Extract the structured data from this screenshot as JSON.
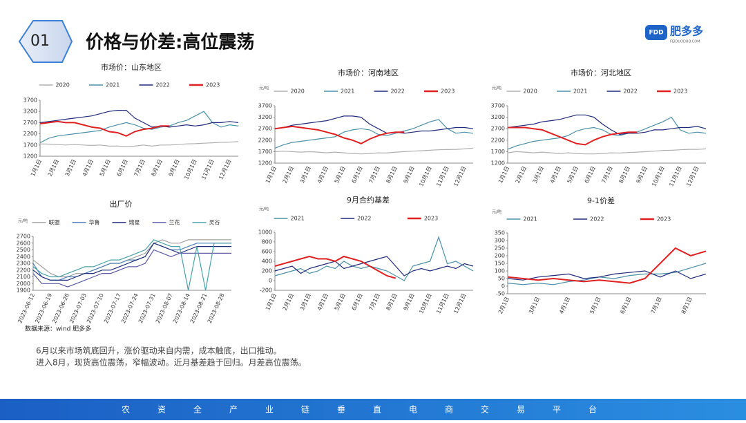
{
  "header": {
    "number": "01",
    "title": "价格与价差:高位震荡"
  },
  "logo": {
    "badge": "FDD",
    "name": "肥多多",
    "url": "FEIDUODUO.COM"
  },
  "source": "数据来源：wind  肥多多",
  "notes": [
    "6月以来市场筑底回升，涨价驱动来自内需，成本触底，出口推动。",
    "进入8月，现货高位震荡，窄幅波动。近月基差趋于回归。月差高位震荡。"
  ],
  "footer": "农资全产业链垂直电商交易平台",
  "chart_data": [
    {
      "type": "line",
      "title": "市场价：山东地区",
      "categories": [
        "1月1日",
        null,
        "2月1日",
        null,
        "3月1日",
        null,
        "4月1日",
        null,
        "5月1日",
        null,
        "6月1日",
        null,
        "7月1日",
        null,
        "8月1日",
        null,
        "9月1日",
        null,
        "10月1日",
        null,
        "11月1日",
        null,
        "12月1日",
        null
      ],
      "ylim": [
        1200,
        3700
      ],
      "yticks": [
        1200,
        1700,
        2200,
        2700,
        3200,
        3700
      ],
      "series": [
        {
          "name": "2020",
          "color": "#b0b0b0",
          "values": [
            1750,
            1740,
            1720,
            1700,
            1720,
            1700,
            1680,
            1700,
            1650,
            1650,
            1620,
            1650,
            1700,
            1650,
            1700,
            1700,
            1720,
            1750,
            1760,
            1780,
            1800,
            1820,
            1830,
            1850
          ]
        },
        {
          "name": "2021",
          "color": "#4a8fa8",
          "values": [
            1800,
            2000,
            2100,
            2150,
            2200,
            2250,
            2300,
            2350,
            2500,
            2600,
            2700,
            2600,
            2450,
            2400,
            2500,
            2550,
            2700,
            2800,
            3000,
            3200,
            2700,
            2500,
            2600,
            2550
          ]
        },
        {
          "name": "2022",
          "color": "#1f2a7a",
          "values": [
            2700,
            2750,
            2800,
            2850,
            2900,
            2950,
            3000,
            3100,
            3200,
            3250,
            3250,
            2900,
            2700,
            2500,
            2550,
            2500,
            2550,
            2600,
            2550,
            2600,
            2700,
            2700,
            2750,
            2700
          ]
        },
        {
          "name": "2023",
          "color": "#e02020",
          "values": [
            2650,
            2700,
            2750,
            2700,
            2700,
            2600,
            2500,
            2450,
            2300,
            2250,
            2100,
            2300,
            2400,
            2450,
            2550,
            2550,
            null,
            null,
            null,
            null,
            null,
            null,
            null,
            null
          ]
        }
      ]
    },
    {
      "type": "line",
      "title": "市场价：河南地区",
      "unit": "元/吨",
      "categories": [
        "1月1日",
        null,
        "2月1日",
        null,
        "3月1日",
        null,
        "4月1日",
        null,
        "5月1日",
        null,
        "6月1日",
        null,
        "7月1日",
        null,
        "8月1日",
        null,
        "9月1日",
        null,
        "10月1日",
        null,
        "11月1日",
        null,
        "12月1日",
        null
      ],
      "ylim": [
        1200,
        3700
      ],
      "yticks": [
        1200,
        1700,
        2200,
        2700,
        3200,
        3700
      ],
      "series": [
        {
          "name": "2020",
          "color": "#b0b0b0",
          "values": [
            1700,
            1720,
            1700,
            1680,
            1700,
            1680,
            1650,
            1680,
            1650,
            1620,
            1600,
            1620,
            1650,
            1640,
            1680,
            1700,
            1720,
            1740,
            1760,
            1780,
            1790,
            1800,
            1820,
            1850
          ]
        },
        {
          "name": "2021",
          "color": "#4a8fa8",
          "values": [
            1850,
            2000,
            2100,
            2150,
            2200,
            2250,
            2300,
            2350,
            2550,
            2650,
            2700,
            2650,
            2450,
            2400,
            2500,
            2600,
            2700,
            2850,
            3000,
            3100,
            2700,
            2500,
            2550,
            2500
          ]
        },
        {
          "name": "2022",
          "color": "#1f2a7a",
          "values": [
            2700,
            2750,
            2850,
            2900,
            2950,
            3000,
            3050,
            3150,
            3250,
            3250,
            3200,
            2900,
            2700,
            2500,
            2550,
            2500,
            2550,
            2600,
            2600,
            2650,
            2700,
            2750,
            2750,
            2700
          ]
        },
        {
          "name": "2023",
          "color": "#e02020",
          "values": [
            2700,
            2750,
            2800,
            2750,
            2700,
            2650,
            2550,
            2450,
            2300,
            2200,
            2050,
            2250,
            2400,
            2500,
            2550,
            2550,
            null,
            null,
            null,
            null,
            null,
            null,
            null,
            null
          ]
        }
      ]
    },
    {
      "type": "line",
      "title": "市场价：河北地区",
      "unit": "元/吨",
      "categories": [
        "1月1日",
        null,
        "2月1日",
        null,
        "3月1日",
        null,
        "4月1日",
        null,
        "5月1日",
        null,
        "6月1日",
        null,
        "7月1日",
        null,
        "8月1日",
        null,
        "9月1日",
        null,
        "10月1日",
        null,
        "11月1日",
        null,
        "12月1日",
        null
      ],
      "ylim": [
        1200,
        3700
      ],
      "yticks": [
        1200,
        1700,
        2200,
        2700,
        3200,
        3700
      ],
      "series": [
        {
          "name": "2020",
          "color": "#b0b0b0",
          "values": [
            1650,
            1700,
            1680,
            1650,
            1680,
            1650,
            1620,
            1650,
            1620,
            1600,
            1600,
            1620,
            1650,
            1640,
            1660,
            1680,
            1700,
            1720,
            1750,
            1760,
            1780,
            1800,
            1800,
            1820
          ]
        },
        {
          "name": "2021",
          "color": "#4a8fa8",
          "values": [
            1800,
            1950,
            2050,
            2150,
            2200,
            2250,
            2300,
            2400,
            2600,
            2700,
            2750,
            2650,
            2450,
            2400,
            2500,
            2550,
            2700,
            2850,
            3000,
            3200,
            2650,
            2500,
            2550,
            2500
          ]
        },
        {
          "name": "2022",
          "color": "#1f2a7a",
          "values": [
            2750,
            2800,
            2850,
            2900,
            3000,
            3050,
            3100,
            3200,
            3300,
            3300,
            3200,
            2900,
            2650,
            2450,
            2500,
            2500,
            2550,
            2650,
            2650,
            2700,
            2750,
            2750,
            2800,
            2700
          ]
        },
        {
          "name": "2023",
          "color": "#e02020",
          "values": [
            2750,
            2750,
            2750,
            2700,
            2650,
            2500,
            2350,
            2200,
            2050,
            2000,
            2200,
            2350,
            2450,
            2500,
            2550,
            2550,
            null,
            null,
            null,
            null,
            null,
            null,
            null,
            null
          ]
        }
      ]
    },
    {
      "type": "line",
      "title": "出厂价",
      "unit": "元/吨",
      "categories": [
        "2023-06-12",
        null,
        "2023-06-19",
        null,
        "2023-06-26",
        null,
        "2023-07-03",
        null,
        "2023-07-10",
        null,
        "2023-07-17",
        null,
        "2023-07-24",
        null,
        "2023-07-31",
        null,
        "2023-08-07",
        null,
        "2023-08-14",
        null,
        "2023-08-21",
        null,
        "2023-08-28",
        null
      ],
      "ylim": [
        1900,
        2700
      ],
      "yticks": [
        1900,
        2000,
        2100,
        2200,
        2300,
        2400,
        2500,
        2600,
        2700
      ],
      "series": [
        {
          "name": "联盟",
          "color": "#a0a0a0",
          "values": [
            2350,
            2250,
            2150,
            2100,
            2100,
            2150,
            2150,
            2200,
            2250,
            2300,
            2300,
            2350,
            2400,
            2450,
            2600,
            2650,
            2600,
            2600,
            2650,
            2650,
            2650,
            2650,
            2650,
            2650
          ]
        },
        {
          "name": "华鲁",
          "color": "#4a7fb5",
          "values": [
            2300,
            2100,
            2050,
            2050,
            2100,
            2100,
            2150,
            2200,
            2250,
            2300,
            2300,
            2350,
            2350,
            2400,
            2600,
            2550,
            2500,
            2500,
            2550,
            2600,
            2600,
            2600,
            2600,
            2600
          ]
        },
        {
          "name": "瑞星",
          "color": "#1f2a7a",
          "values": [
            2200,
            2100,
            2050,
            2050,
            2050,
            2100,
            2150,
            2150,
            2200,
            2200,
            2250,
            2300,
            2350,
            2400,
            2600,
            2550,
            2500,
            2450,
            2500,
            2550,
            2550,
            2550,
            2550,
            2550
          ]
        },
        {
          "name": "兰花",
          "color": "#5a5aa8",
          "values": [
            2150,
            2000,
            2000,
            2000,
            1950,
            2000,
            2050,
            2100,
            2150,
            2150,
            2200,
            2250,
            2250,
            2300,
            2500,
            2450,
            2400,
            2450,
            2450,
            2450,
            2450,
            2450,
            2450,
            2450
          ]
        },
        {
          "name": "灵谷",
          "color": "#4aa0a8",
          "values": [
            2250,
            2150,
            2100,
            2100,
            2150,
            2200,
            2250,
            2250,
            2300,
            2350,
            2350,
            2400,
            2450,
            2500,
            2650,
            2600,
            2550,
            2550,
            1900,
            2550,
            1900,
            2600,
            2600,
            2600
          ]
        }
      ]
    },
    {
      "type": "line",
      "title": "9月合约基差",
      "unit": "元/吨",
      "categories": [
        "1月1日",
        null,
        "2月1日",
        null,
        "3月1日",
        null,
        "4月1日",
        null,
        "5月1日",
        null,
        "6月1日",
        null,
        "7月1日",
        null,
        "8月1日",
        null,
        "9月1日",
        null,
        "10月1日",
        null,
        "11月1日",
        null,
        "12月1日",
        null
      ],
      "ylim": [
        -200,
        1000
      ],
      "yticks": [
        -200,
        0,
        200,
        400,
        600,
        800,
        1000
      ],
      "series": [
        {
          "name": "2021",
          "color": "#4a8fa8",
          "values": [
            100,
            150,
            200,
            250,
            150,
            200,
            300,
            250,
            400,
            300,
            250,
            300,
            250,
            200,
            100,
            0,
            300,
            350,
            400,
            900,
            350,
            400,
            300,
            200
          ]
        },
        {
          "name": "2022",
          "color": "#1f2a7a",
          "values": [
            200,
            250,
            300,
            150,
            250,
            300,
            350,
            400,
            250,
            300,
            350,
            400,
            450,
            500,
            300,
            100,
            200,
            250,
            200,
            250,
            300,
            250,
            350,
            300
          ]
        },
        {
          "name": "2023",
          "color": "#e02020",
          "values": [
            300,
            350,
            400,
            450,
            500,
            450,
            450,
            400,
            500,
            450,
            400,
            300,
            200,
            100,
            50,
            null,
            null,
            null,
            null,
            null,
            null,
            null,
            null,
            null
          ]
        }
      ]
    },
    {
      "type": "line",
      "title": "9-1价差",
      "unit": "元/吨",
      "categories": [
        "2月1日",
        null,
        "3月1日",
        null,
        "4月1日",
        null,
        "5月1日",
        null,
        "6月1日",
        null,
        "7月1日",
        null,
        "8月1日",
        null
      ],
      "ylim": [
        -50,
        350
      ],
      "yticks": [
        -50,
        0,
        50,
        100,
        150,
        200,
        250,
        300,
        350
      ],
      "series": [
        {
          "name": "2021",
          "color": "#4a8fa8",
          "values": [
            20,
            10,
            20,
            10,
            30,
            40,
            60,
            50,
            70,
            80,
            80,
            90,
            120,
            150
          ]
        },
        {
          "name": "2022",
          "color": "#1f2a7a",
          "values": [
            50,
            40,
            60,
            70,
            80,
            50,
            60,
            80,
            90,
            100,
            60,
            100,
            50,
            80
          ]
        },
        {
          "name": "2023",
          "color": "#e02020",
          "values": [
            60,
            50,
            40,
            50,
            40,
            30,
            40,
            30,
            20,
            50,
            150,
            250,
            200,
            230
          ]
        }
      ]
    }
  ]
}
